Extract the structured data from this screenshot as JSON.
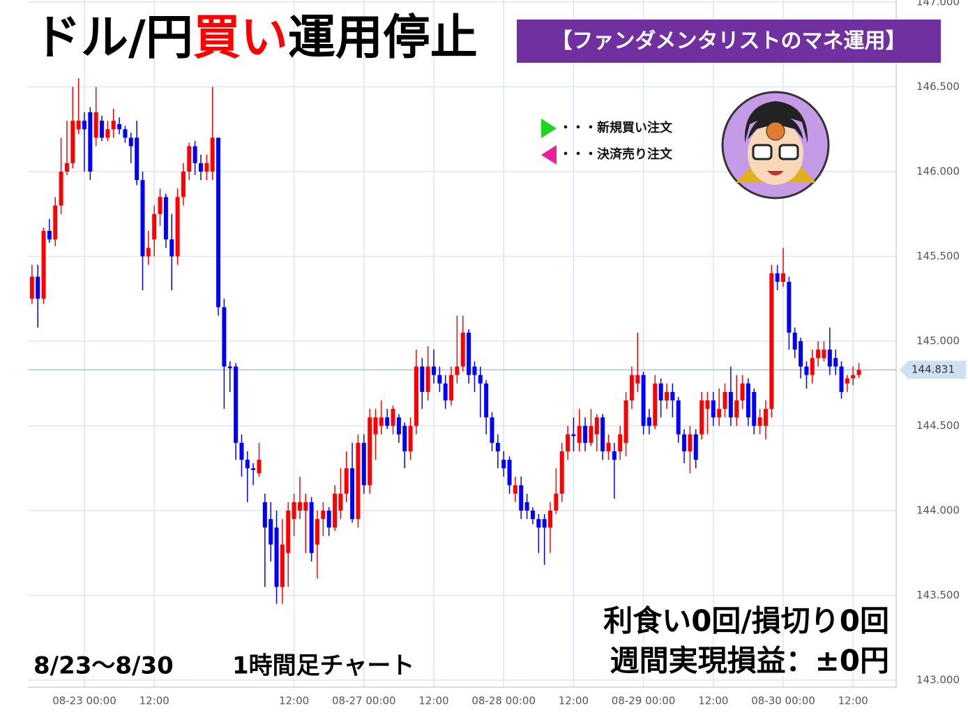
{
  "chart_data": {
    "type": "candlestick",
    "title": [
      {
        "text": "ドル/円",
        "color": "#000000"
      },
      {
        "text": "買い",
        "color": "#ff0000"
      },
      {
        "text": "運用停止",
        "color": "#000000"
      }
    ],
    "banner": "【ファンダメンタリストのマネ運用】",
    "legend": [
      {
        "text": "・・・新規買い注文",
        "color": "#1ed61e"
      },
      {
        "text": "・・・決済売り注文",
        "color": "#ee1f9a"
      }
    ],
    "period": "8/23〜8/30",
    "timeframe": "1時間足チャート",
    "result_count": "利食い0回/損切り0回",
    "result_pnl": "週間実現損益：±0円",
    "up_color": "#ff0000",
    "down_color": "#0000ff",
    "grid": true,
    "last_price": 144.831,
    "xlim": [
      -9.7,
      139.4
    ],
    "xticks": [
      {
        "value": 0,
        "label": "08-23 00:00"
      },
      {
        "value": 12,
        "label": "12:00"
      },
      {
        "value": 36,
        "label": "12:00"
      },
      {
        "value": 48,
        "label": "08-27 00:00"
      },
      {
        "value": 60,
        "label": "12:00"
      },
      {
        "value": 72,
        "label": "08-28 00:00"
      },
      {
        "value": 84,
        "label": "12:00"
      },
      {
        "value": 96,
        "label": "08-29 00:00"
      },
      {
        "value": 108,
        "label": "12:00"
      },
      {
        "value": 120,
        "label": "08-30 00:00"
      },
      {
        "value": 132,
        "label": "12:00"
      }
    ],
    "ylim": [
      143.0,
      147.0
    ],
    "yticks": [
      {
        "value": 143.0,
        "label": "143.000"
      },
      {
        "value": 143.5,
        "label": "143.500"
      },
      {
        "value": 144.0,
        "label": "144.000"
      },
      {
        "value": 144.5,
        "label": "144.500"
      },
      {
        "value": 145.0,
        "label": "145.000"
      },
      {
        "value": 145.5,
        "label": "145.500"
      },
      {
        "value": 146.0,
        "label": "146.000"
      },
      {
        "value": 146.5,
        "label": "146.500"
      },
      {
        "value": 147.0,
        "label": "147.000"
      }
    ],
    "x": [
      -9,
      -8,
      -7,
      -6,
      -5,
      -4,
      -3,
      -2,
      -1,
      0,
      1,
      2,
      3,
      4,
      5,
      6,
      7,
      8,
      9,
      10,
      11,
      12,
      13,
      14,
      15,
      16,
      17,
      18,
      19,
      20,
      21,
      22,
      23,
      24,
      25,
      26,
      27,
      28,
      29,
      30,
      31,
      32,
      33,
      34,
      35,
      36,
      37,
      38,
      39,
      40,
      41,
      42,
      43,
      44,
      45,
      46,
      47,
      48,
      49,
      50,
      51,
      52,
      53,
      54,
      55,
      56,
      57,
      58,
      59,
      60,
      61,
      62,
      63,
      64,
      65,
      66,
      67,
      68,
      69,
      70,
      71,
      72,
      73,
      74,
      75,
      76,
      77,
      78,
      79,
      80,
      81,
      82,
      83,
      84,
      85,
      86,
      87,
      88,
      89,
      90,
      91,
      92,
      93,
      94,
      95,
      96,
      97,
      98,
      99,
      100,
      101,
      102,
      103,
      104,
      105,
      106,
      107,
      108,
      109,
      110,
      111,
      112,
      113,
      114,
      115,
      116,
      117,
      118,
      119,
      120,
      121,
      122,
      123,
      124,
      125,
      126,
      127,
      128,
      129,
      130,
      131,
      132,
      133
    ],
    "open": [
      145.25,
      145.38,
      145.25,
      145.65,
      145.6,
      145.8,
      146.0,
      146.05,
      146.25,
      146.3,
      146.35,
      146.2,
      146.3,
      146.2,
      146.25,
      146.28,
      146.25,
      146.2,
      146.2,
      145.95,
      145.5,
      145.6,
      145.75,
      145.85,
      145.6,
      145.5,
      145.85,
      146.0,
      146.15,
      146.05,
      146.0,
      146.0,
      146.2,
      145.2,
      144.85,
      144.85,
      144.4,
      144.3,
      144.25,
      144.22,
      144.05,
      143.95,
      143.9,
      143.55,
      143.75,
      143.95,
      144.0,
      144.0,
      144.05,
      143.8,
      143.95,
      144.0,
      143.9,
      144.0,
      144.1,
      144.25,
      143.95,
      144.4,
      144.15,
      144.45,
      144.5,
      144.55,
      144.5,
      144.55,
      144.5,
      144.35,
      144.5,
      144.85,
      144.7,
      144.85,
      144.8,
      144.75,
      144.65,
      144.8,
      144.85,
      145.05,
      144.85,
      144.8,
      144.75,
      144.55,
      144.4,
      144.3,
      144.3,
      144.1,
      144.15,
      144.05,
      144.0,
      143.95,
      143.95,
      143.9,
      144.0,
      144.1,
      144.35,
      144.45,
      144.4,
      144.5,
      144.4,
      144.45,
      144.55,
      144.35,
      144.35,
      144.35,
      144.4,
      144.65,
      144.75,
      144.8,
      144.55,
      144.5,
      144.75,
      144.65,
      144.7,
      144.65,
      144.45,
      144.35,
      144.45,
      144.45,
      144.6,
      144.65,
      144.55,
      144.6,
      144.7,
      144.55,
      144.65,
      144.75,
      144.7,
      144.5,
      144.5,
      144.6,
      145.4,
      145.35,
      145.35,
      145.05,
      145.0,
      144.85,
      144.8,
      144.9,
      144.9,
      144.95,
      144.9,
      144.85,
      144.75,
      144.78,
      144.8
    ],
    "high": [
      145.45,
      145.45,
      145.67,
      145.72,
      145.85,
      146.2,
      146.3,
      146.5,
      146.55,
      146.35,
      146.38,
      146.5,
      146.33,
      146.3,
      146.37,
      146.32,
      146.27,
      146.23,
      146.3,
      146.0,
      145.65,
      145.8,
      145.9,
      145.87,
      145.75,
      145.9,
      146.05,
      146.17,
      146.18,
      146.1,
      146.1,
      146.5,
      146.2,
      145.25,
      144.88,
      144.87,
      144.45,
      144.35,
      144.28,
      144.4,
      144.1,
      144.05,
      144.0,
      143.95,
      144.05,
      144.1,
      144.2,
      144.1,
      144.08,
      144.0,
      144.05,
      144.02,
      144.15,
      144.25,
      144.35,
      144.4,
      144.45,
      144.45,
      144.6,
      144.6,
      144.65,
      144.6,
      144.62,
      144.57,
      144.52,
      144.55,
      144.95,
      144.9,
      144.97,
      144.95,
      144.85,
      144.8,
      144.85,
      145.15,
      145.15,
      145.07,
      144.88,
      144.85,
      144.77,
      144.58,
      144.45,
      144.35,
      144.32,
      144.2,
      144.2,
      144.1,
      144.02,
      143.98,
      143.98,
      144.05,
      144.25,
      144.4,
      144.5,
      144.55,
      144.6,
      144.55,
      144.6,
      144.57,
      144.57,
      144.45,
      144.4,
      144.5,
      144.7,
      144.85,
      145.05,
      144.82,
      144.6,
      144.8,
      144.78,
      144.75,
      144.75,
      144.67,
      144.48,
      144.5,
      144.48,
      144.7,
      144.7,
      144.7,
      144.72,
      144.75,
      144.85,
      144.8,
      144.8,
      144.78,
      144.72,
      144.6,
      144.65,
      145.45,
      145.45,
      145.55,
      145.38,
      145.08,
      145.02,
      144.88,
      144.95,
      145.0,
      145.0,
      145.08,
      144.95,
      144.88,
      144.8,
      144.85,
      144.87
    ],
    "low": [
      145.22,
      145.08,
      145.22,
      145.58,
      145.56,
      145.75,
      145.98,
      146.02,
      146.22,
      146.0,
      145.95,
      146.15,
      146.18,
      146.18,
      146.2,
      146.22,
      146.17,
      146.05,
      145.92,
      145.3,
      145.45,
      145.5,
      145.68,
      145.55,
      145.3,
      145.45,
      145.8,
      145.95,
      145.98,
      145.95,
      145.95,
      145.95,
      145.15,
      144.6,
      144.7,
      144.3,
      144.2,
      144.05,
      144.15,
      144.2,
      143.55,
      143.7,
      143.45,
      143.45,
      143.55,
      143.85,
      143.95,
      143.75,
      143.7,
      143.6,
      143.85,
      143.85,
      143.88,
      143.95,
      144.05,
      143.93,
      143.9,
      144.1,
      144.1,
      144.3,
      144.45,
      144.48,
      144.45,
      144.4,
      144.25,
      144.3,
      144.45,
      144.6,
      144.65,
      144.75,
      144.7,
      144.6,
      144.62,
      144.75,
      144.82,
      144.75,
      144.7,
      144.55,
      144.45,
      144.35,
      144.25,
      144.2,
      144.1,
      144.05,
      143.95,
      143.95,
      143.92,
      143.75,
      143.68,
      143.75,
      143.98,
      144.05,
      144.3,
      144.35,
      144.35,
      144.35,
      144.38,
      144.35,
      144.3,
      144.3,
      144.07,
      144.3,
      144.32,
      144.6,
      144.7,
      144.45,
      144.45,
      144.48,
      144.55,
      144.6,
      144.55,
      144.4,
      144.28,
      144.22,
      144.25,
      144.42,
      144.45,
      144.5,
      144.5,
      144.55,
      144.5,
      144.5,
      144.6,
      144.5,
      144.45,
      144.45,
      144.42,
      144.55,
      145.3,
      145.32,
      144.95,
      144.9,
      144.78,
      144.72,
      144.75,
      144.85,
      144.88,
      144.8,
      144.8,
      144.66,
      144.7,
      144.74,
      144.78
    ],
    "close": [
      145.38,
      145.25,
      145.65,
      145.6,
      145.8,
      146.0,
      146.05,
      146.3,
      146.3,
      146.25,
      146.0,
      146.35,
      146.2,
      146.25,
      146.3,
      146.25,
      146.2,
      146.15,
      145.95,
      145.5,
      145.55,
      145.75,
      145.85,
      145.6,
      145.5,
      145.85,
      146.0,
      146.15,
      146.05,
      146.0,
      146.05,
      146.2,
      145.2,
      144.85,
      144.84,
      144.4,
      144.3,
      144.25,
      144.24,
      144.3,
      143.9,
      143.8,
      143.55,
      143.8,
      144.0,
      144.05,
      144.05,
      144.05,
      143.75,
      143.95,
      144.0,
      143.9,
      144.1,
      144.1,
      144.25,
      143.95,
      144.4,
      144.15,
      144.55,
      144.55,
      144.55,
      144.5,
      144.6,
      144.45,
      144.35,
      144.5,
      144.85,
      144.7,
      144.85,
      144.8,
      144.75,
      144.65,
      144.8,
      144.85,
      145.05,
      144.8,
      144.8,
      144.75,
      144.55,
      144.4,
      144.35,
      144.25,
      144.15,
      144.15,
      144.0,
      144.0,
      143.95,
      143.9,
      143.9,
      144.0,
      144.1,
      144.35,
      144.45,
      144.44,
      144.5,
      144.4,
      144.5,
      144.55,
      144.35,
      144.4,
      144.3,
      144.45,
      144.65,
      144.8,
      144.8,
      144.5,
      144.5,
      144.75,
      144.65,
      144.7,
      144.65,
      144.45,
      144.35,
      144.45,
      144.3,
      144.65,
      144.65,
      144.55,
      144.6,
      144.7,
      144.55,
      144.65,
      144.75,
      144.55,
      144.5,
      144.55,
      144.6,
      145.4,
      145.35,
      145.4,
      145.05,
      144.95,
      144.85,
      144.8,
      144.9,
      144.95,
      144.95,
      144.85,
      144.85,
      144.7,
      144.78,
      144.8,
      144.83
    ]
  }
}
